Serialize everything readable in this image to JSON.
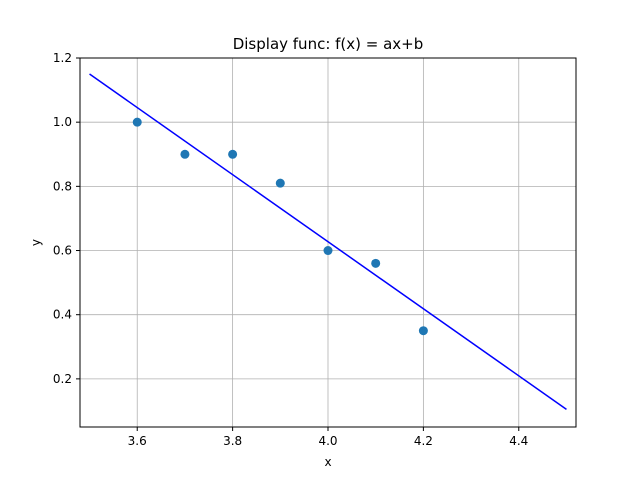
{
  "chart_data": {
    "type": "scatter",
    "title": "Display func: f(x) = ax+b",
    "xlabel": "x",
    "ylabel": "y",
    "xlim": [
      3.48,
      4.52
    ],
    "ylim": [
      0.05,
      1.2
    ],
    "xticks": [
      3.6,
      3.8,
      4.0,
      4.2,
      4.4
    ],
    "xtick_labels": [
      "3.6",
      "3.8",
      "4.0",
      "4.2",
      "4.4"
    ],
    "yticks": [
      0.2,
      0.4,
      0.6,
      0.8,
      1.0,
      1.2
    ],
    "ytick_labels": [
      "0.2",
      "0.4",
      "0.6",
      "0.8",
      "1.0",
      "1.2"
    ],
    "grid": true,
    "series": [
      {
        "kind": "scatter",
        "color": "#1f77b4",
        "x": [
          3.6,
          3.7,
          3.8,
          3.9,
          4.0,
          4.1,
          4.2
        ],
        "y": [
          1.0,
          0.9,
          0.9,
          0.81,
          0.6,
          0.56,
          0.35
        ]
      },
      {
        "kind": "line",
        "color": "#0000ff",
        "x": [
          3.5,
          4.5
        ],
        "y": [
          1.15,
          0.105
        ]
      }
    ]
  }
}
